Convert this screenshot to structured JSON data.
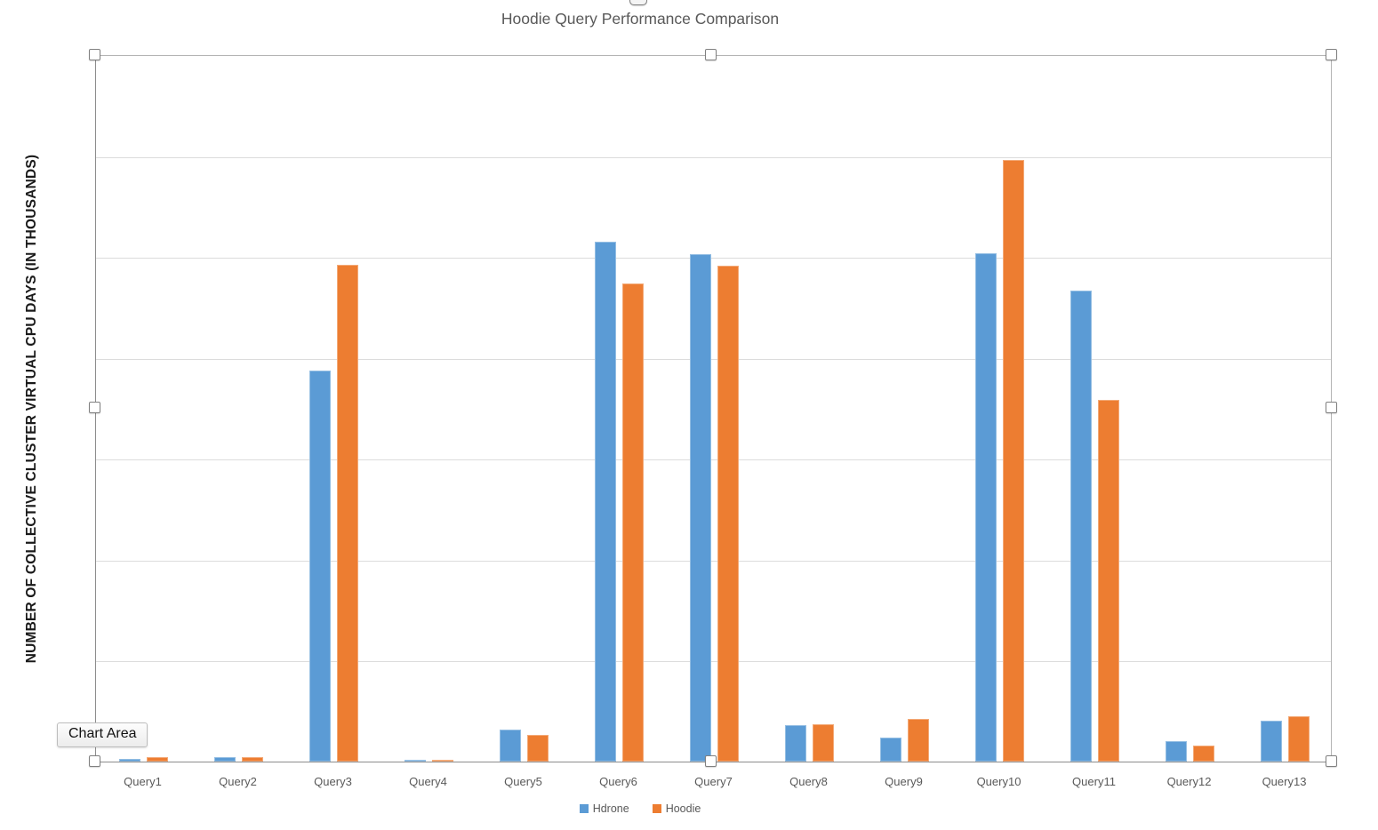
{
  "tooltip": {
    "label": "Chart Area"
  },
  "chart_data": {
    "type": "bar",
    "title": "Hoodie Query Performance Comparison",
    "xlabel": "",
    "ylabel": "NUMBER OF COLLECTIVE CLUSTER VIRTUAL CPU DAYS (IN THOUSANDS)",
    "categories": [
      "Query1",
      "Query2",
      "Query3",
      "Query4",
      "Query5",
      "Query6",
      "Query7",
      "Query8",
      "Query9",
      "Query10",
      "Query11",
      "Query12",
      "Query13"
    ],
    "series": [
      {
        "name": "Hdrone",
        "color": "#5B9BD5",
        "values": [
          5,
          9,
          775,
          4,
          63,
          1030,
          1005,
          72,
          47,
          1008,
          934,
          40,
          81
        ]
      },
      {
        "name": "Hoodie",
        "color": "#ED7D31",
        "values": [
          9,
          8,
          985,
          3,
          52,
          948,
          983,
          74,
          85,
          1192,
          716,
          32,
          90
        ]
      }
    ],
    "ylim": [
      0,
      1400
    ],
    "yticks": [
      0,
      200,
      400,
      600,
      800,
      1000,
      1200,
      1400
    ],
    "grid": true,
    "legend_position": "bottom",
    "gridline_color": "#dcdcdc",
    "axis_text_color": "#595959",
    "title_color": "#595959"
  },
  "selection": {
    "state": "chart-selected",
    "handle_shape": "white-square"
  }
}
